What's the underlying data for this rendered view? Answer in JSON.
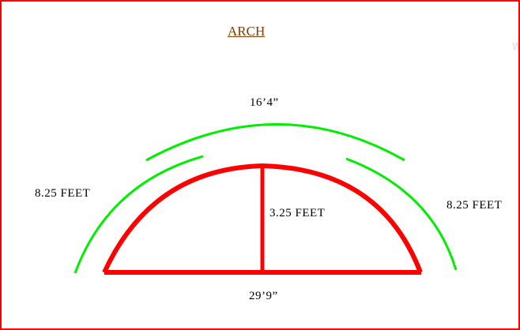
{
  "title": "ARCH",
  "labels": {
    "top_arc": "16’4”",
    "left_side": "8.25  FEET",
    "right_side": "8.25  FEET",
    "height": "3.25  FEET",
    "base": "29’9”"
  },
  "watermark": "W",
  "colors": {
    "border": "#ff0000",
    "arch": "#ff0000",
    "guides": "#00ee00",
    "title": "#7a3b00"
  }
}
